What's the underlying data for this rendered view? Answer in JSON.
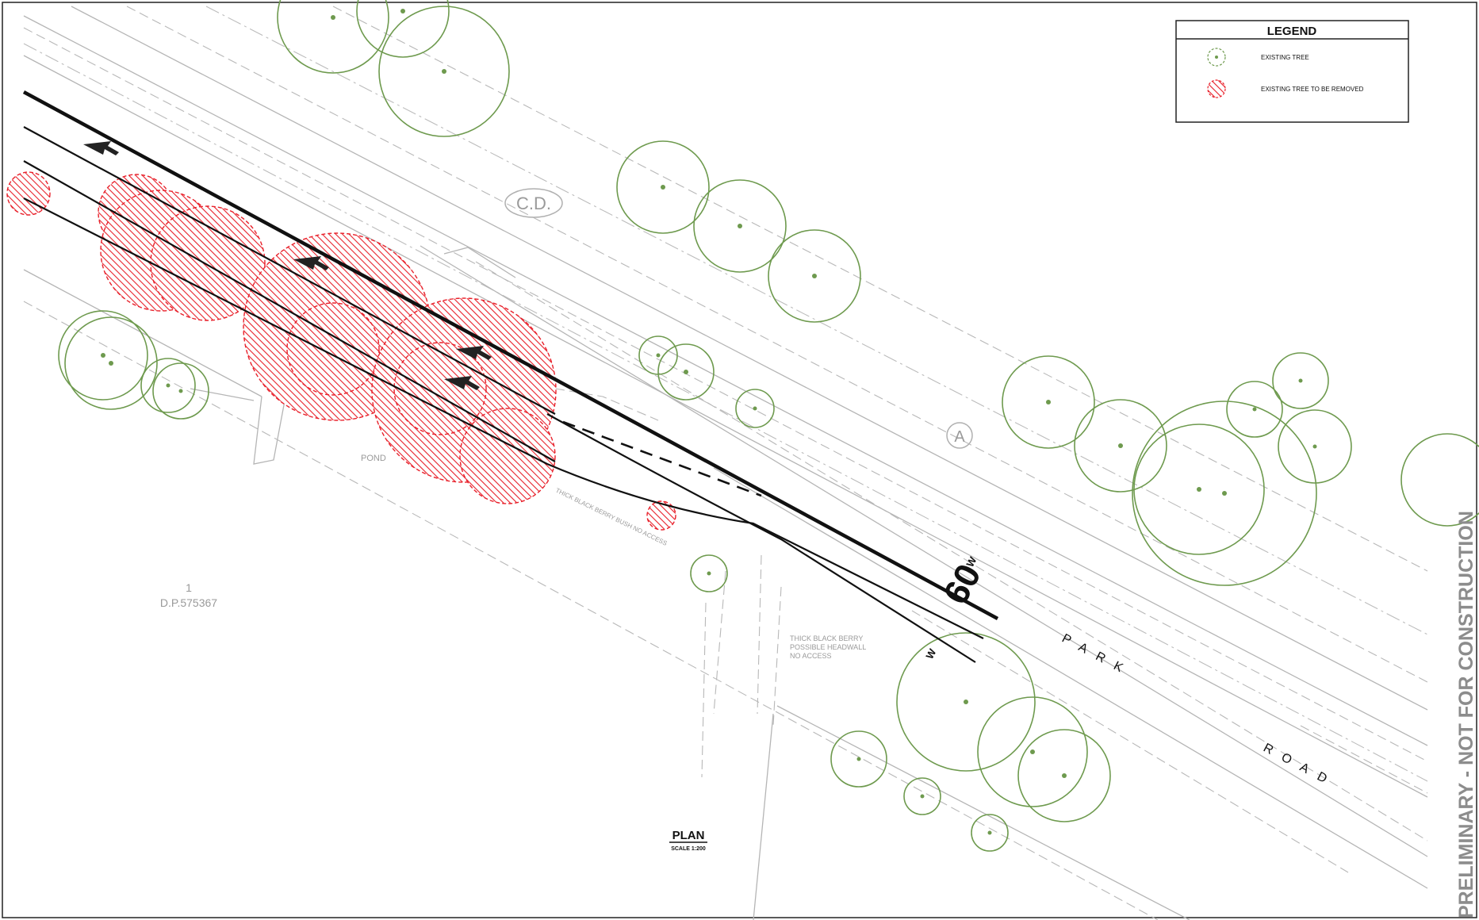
{
  "legend": {
    "title": "LEGEND",
    "items": [
      {
        "icon": "existing-tree-icon",
        "label": "EXISTING TREE"
      },
      {
        "icon": "tree-to-be-removed-icon",
        "label": "EXISTING TREE TO BE REMOVED"
      }
    ]
  },
  "watermark": "PRELIMINARY - NOT FOR CONSTRUCTION",
  "plan": {
    "title": "PLAN",
    "scale": "SCALE 1:200"
  },
  "road": {
    "name_word1": "PARK",
    "name_word2": "ROAD"
  },
  "lot": {
    "number": "1",
    "dp": "D.P.575367"
  },
  "labels": {
    "cd": "C.D.",
    "a_marker": "A",
    "pond": "POND",
    "note_blackberry_top": "THICK BLACK BERRY BUSH NO ACCESS",
    "note_headwall_1": "THICK BLACK BERRY",
    "note_headwall_2": "POSSIBLE HEADWALL",
    "note_headwall_3": "NO ACCESS",
    "speed_sign": "60",
    "w_top": "W",
    "w_bottom": "W"
  },
  "colors": {
    "tree": "#6e9a4e",
    "removed": "#e8202a",
    "linework": "#111111",
    "survey": "#b5b5b5",
    "watermark": "#8c8c8c"
  }
}
